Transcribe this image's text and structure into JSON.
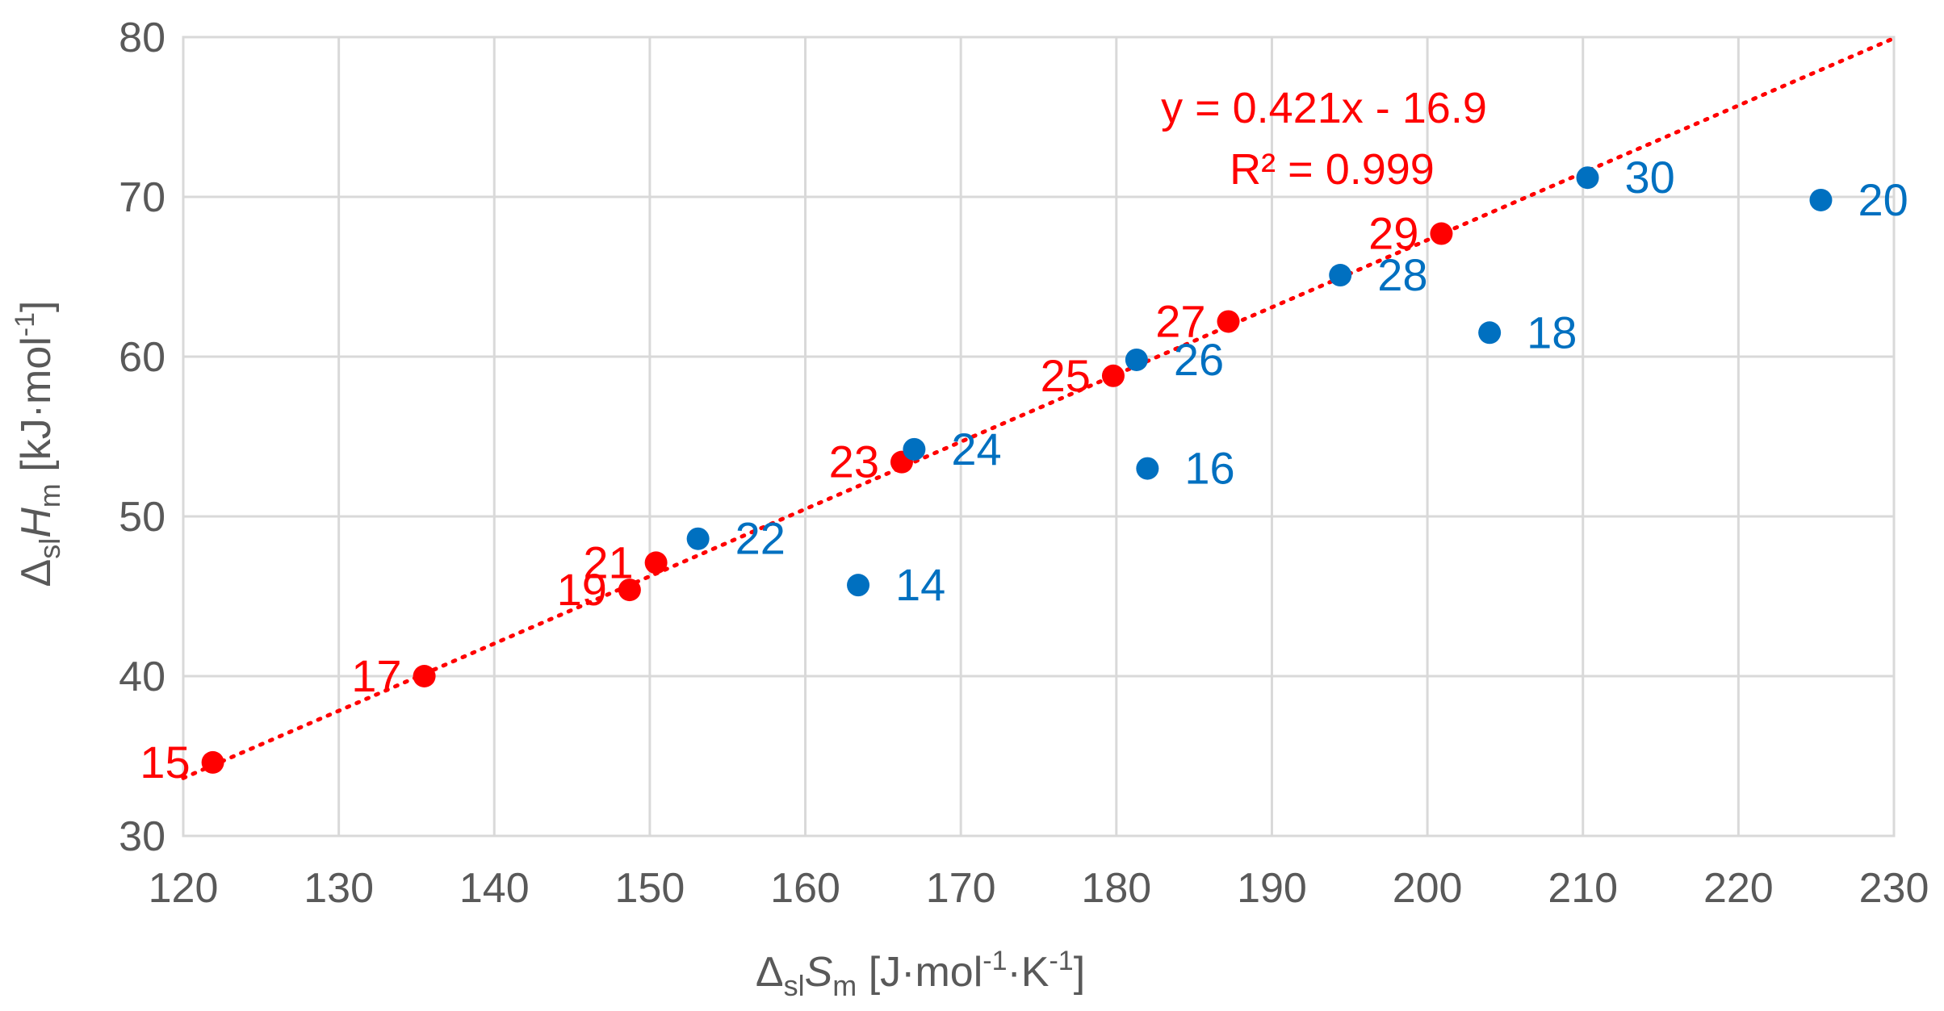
{
  "chart_data": {
    "type": "scatter",
    "xlabel": {
      "prefix": "Δ",
      "sub": "sl",
      "italic": "S",
      "sub2": "m",
      "units": " [J·mol",
      "sup1": "-1",
      "mid": "·K",
      "sup2": "-1",
      "end": "]"
    },
    "ylabel": {
      "prefix": "Δ",
      "sub": "sl",
      "italic": "H",
      "sub2": "m",
      "units": " [kJ·mol",
      "sup1": "-1",
      "end": "]"
    },
    "xlim": [
      120,
      230
    ],
    "ylim": [
      30,
      80
    ],
    "xticks": [
      120,
      130,
      140,
      150,
      160,
      170,
      180,
      190,
      200,
      210,
      220,
      230
    ],
    "yticks": [
      30,
      40,
      50,
      60,
      70,
      80
    ],
    "grid": true,
    "series": [
      {
        "color": "#ff0000",
        "points": [
          {
            "label": "15",
            "x": 121.9,
            "y": 34.6
          },
          {
            "label": "17",
            "x": 135.5,
            "y": 40.0
          },
          {
            "label": "19",
            "x": 148.7,
            "y": 45.4
          },
          {
            "label": "21",
            "x": 150.4,
            "y": 47.1
          },
          {
            "label": "23",
            "x": 166.2,
            "y": 53.4
          },
          {
            "label": "25",
            "x": 179.8,
            "y": 58.8
          },
          {
            "label": "27",
            "x": 187.2,
            "y": 62.2
          },
          {
            "label": "29",
            "x": 200.9,
            "y": 67.7
          }
        ]
      },
      {
        "color": "#0070c0",
        "points": [
          {
            "label": "14",
            "x": 163.4,
            "y": 45.7
          },
          {
            "label": "16",
            "x": 182.0,
            "y": 53.0
          },
          {
            "label": "18",
            "x": 204.0,
            "y": 61.5
          },
          {
            "label": "20",
            "x": 225.3,
            "y": 69.8
          },
          {
            "label": "22",
            "x": 153.1,
            "y": 48.6
          },
          {
            "label": "24",
            "x": 167.0,
            "y": 54.2
          },
          {
            "label": "26",
            "x": 181.3,
            "y": 59.8
          },
          {
            "label": "28",
            "x": 194.4,
            "y": 65.1
          },
          {
            "label": "30",
            "x": 210.3,
            "y": 71.2
          }
        ]
      }
    ],
    "trendline": {
      "color": "#ff0000",
      "slope": 0.421,
      "intercept": -16.9,
      "x_range": [
        120,
        230
      ],
      "equation": "y = 0.421x - 16.9",
      "r2": "R² = 0.999"
    }
  }
}
